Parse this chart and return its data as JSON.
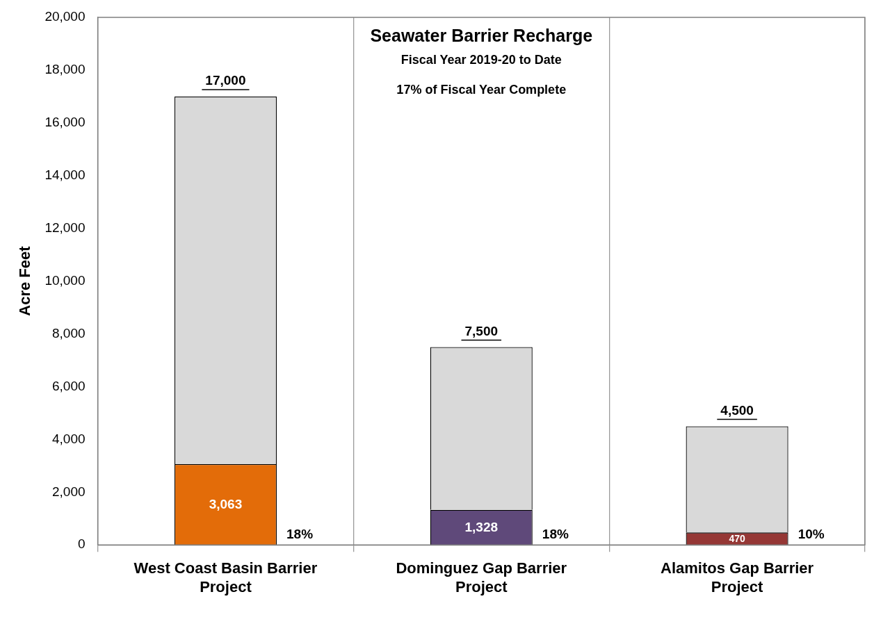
{
  "chart_data": {
    "type": "bar",
    "title": "Seawater Barrier Recharge",
    "subtitle": "Fiscal Year 2019-20 to Date",
    "ylabel": "Acre Feet",
    "categories": [
      "West Coast Basin Barrier Project",
      "Dominguez Gap Barrier Project",
      "Alamitos Gap Barrier Project"
    ],
    "stacked": true,
    "series": [
      {
        "colors": [
          "#e36c09",
          "#5f497a",
          "#953735"
        ],
        "values": [
          3063,
          1328,
          470
        ],
        "value_labels": [
          "3,063",
          "1,328",
          "470"
        ]
      },
      {
        "color": "#d9d9d9",
        "values": [
          13937,
          6172,
          4030
        ]
      }
    ],
    "totals": [
      "17,000",
      "7,500",
      "4,500"
    ],
    "annotations": [
      "17% of Fiscal Year Complete",
      "18%",
      "18%",
      "10%"
    ],
    "ylim": [
      0,
      20000
    ],
    "yticks": [
      {
        "value": 0,
        "label": "0"
      },
      {
        "value": 2000,
        "label": "2,000"
      },
      {
        "value": 4000,
        "label": "4,000"
      },
      {
        "value": 6000,
        "label": "6,000"
      },
      {
        "value": 8000,
        "label": "8,000"
      },
      {
        "value": 10000,
        "label": "10,000"
      },
      {
        "value": 12000,
        "label": "12,000"
      },
      {
        "value": 14000,
        "label": "14,000"
      },
      {
        "value": 16000,
        "label": "16,000"
      },
      {
        "value": 18000,
        "label": "18,000"
      },
      {
        "value": 20000,
        "label": "20,000"
      }
    ],
    "grid": "x",
    "legend": false
  }
}
